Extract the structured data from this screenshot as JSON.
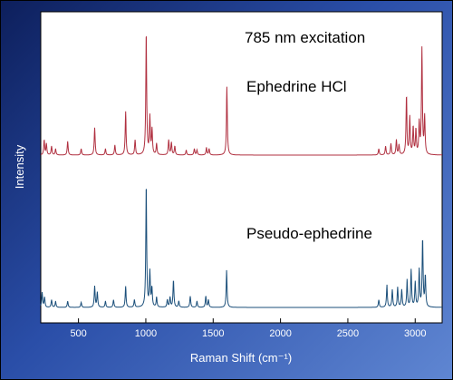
{
  "chart_data": {
    "type": "line",
    "title": "",
    "xlabel": "Raman Shift (cm⁻¹)",
    "ylabel": "Intensity",
    "xlim": [
      220,
      3200
    ],
    "x_ticks": [
      500,
      1000,
      1500,
      2000,
      2500,
      3000
    ],
    "grid": false,
    "annotations": [
      {
        "text": "785 nm excitation"
      },
      {
        "text": "Ephedrine HCl"
      },
      {
        "text": "Pseudo-ephedrine"
      }
    ],
    "series": [
      {
        "color": "#b03040",
        "peaks": [
          [
            245,
            0.12
          ],
          [
            262,
            0.09
          ],
          [
            300,
            0.07
          ],
          [
            330,
            0.05
          ],
          [
            420,
            0.11
          ],
          [
            520,
            0.05
          ],
          [
            620,
            0.22
          ],
          [
            700,
            0.05
          ],
          [
            770,
            0.08
          ],
          [
            850,
            0.35
          ],
          [
            920,
            0.12
          ],
          [
            1003,
            1.0
          ],
          [
            1030,
            0.3
          ],
          [
            1046,
            0.2
          ],
          [
            1080,
            0.09
          ],
          [
            1170,
            0.12
          ],
          [
            1190,
            0.1
          ],
          [
            1215,
            0.07
          ],
          [
            1300,
            0.04
          ],
          [
            1360,
            0.05
          ],
          [
            1380,
            0.04
          ],
          [
            1450,
            0.06
          ],
          [
            1470,
            0.05
          ],
          [
            1602,
            0.55
          ],
          [
            2730,
            0.05
          ],
          [
            2780,
            0.07
          ],
          [
            2820,
            0.09
          ],
          [
            2860,
            0.12
          ],
          [
            2880,
            0.08
          ],
          [
            2935,
            0.48
          ],
          [
            2960,
            0.3
          ],
          [
            2985,
            0.22
          ],
          [
            3005,
            0.2
          ],
          [
            3030,
            0.25
          ],
          [
            3050,
            0.85
          ],
          [
            3070,
            0.3
          ]
        ]
      },
      {
        "color": "#1b4f7a",
        "peaks": [
          [
            230,
            0.12
          ],
          [
            248,
            0.08
          ],
          [
            300,
            0.06
          ],
          [
            330,
            0.05
          ],
          [
            420,
            0.05
          ],
          [
            520,
            0.04
          ],
          [
            620,
            0.17
          ],
          [
            640,
            0.12
          ],
          [
            700,
            0.05
          ],
          [
            760,
            0.06
          ],
          [
            850,
            0.17
          ],
          [
            915,
            0.06
          ],
          [
            1003,
            1.0
          ],
          [
            1030,
            0.28
          ],
          [
            1045,
            0.15
          ],
          [
            1080,
            0.08
          ],
          [
            1160,
            0.06
          ],
          [
            1180,
            0.08
          ],
          [
            1205,
            0.22
          ],
          [
            1245,
            0.05
          ],
          [
            1330,
            0.09
          ],
          [
            1380,
            0.05
          ],
          [
            1445,
            0.09
          ],
          [
            1465,
            0.06
          ],
          [
            1600,
            0.3
          ],
          [
            2730,
            0.06
          ],
          [
            2790,
            0.18
          ],
          [
            2830,
            0.14
          ],
          [
            2870,
            0.16
          ],
          [
            2900,
            0.14
          ],
          [
            2940,
            0.22
          ],
          [
            2970,
            0.3
          ],
          [
            3000,
            0.2
          ],
          [
            3030,
            0.3
          ],
          [
            3055,
            0.55
          ],
          [
            3075,
            0.25
          ]
        ]
      }
    ]
  }
}
